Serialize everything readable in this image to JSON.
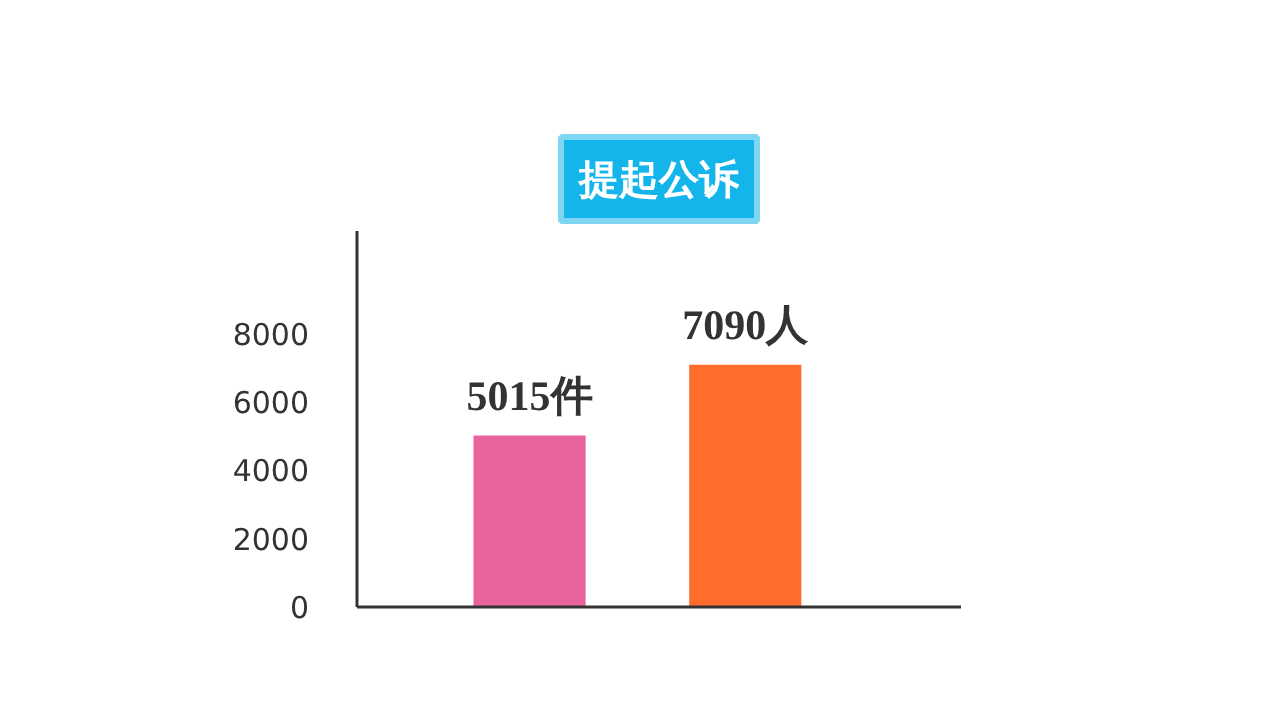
{
  "chart_data": {
    "type": "bar",
    "title": "提起公诉",
    "categories": [
      null,
      null
    ],
    "values": [
      5015,
      7090
    ],
    "colors": [
      "#e8649f",
      "#ff6c2c"
    ],
    "value_labels": [
      "5015件",
      "7090人"
    ],
    "ylim": [
      0,
      11000
    ],
    "yticks": [
      0,
      2000,
      4000,
      6000,
      8000
    ],
    "grid": false,
    "tick_labels": "y"
  }
}
